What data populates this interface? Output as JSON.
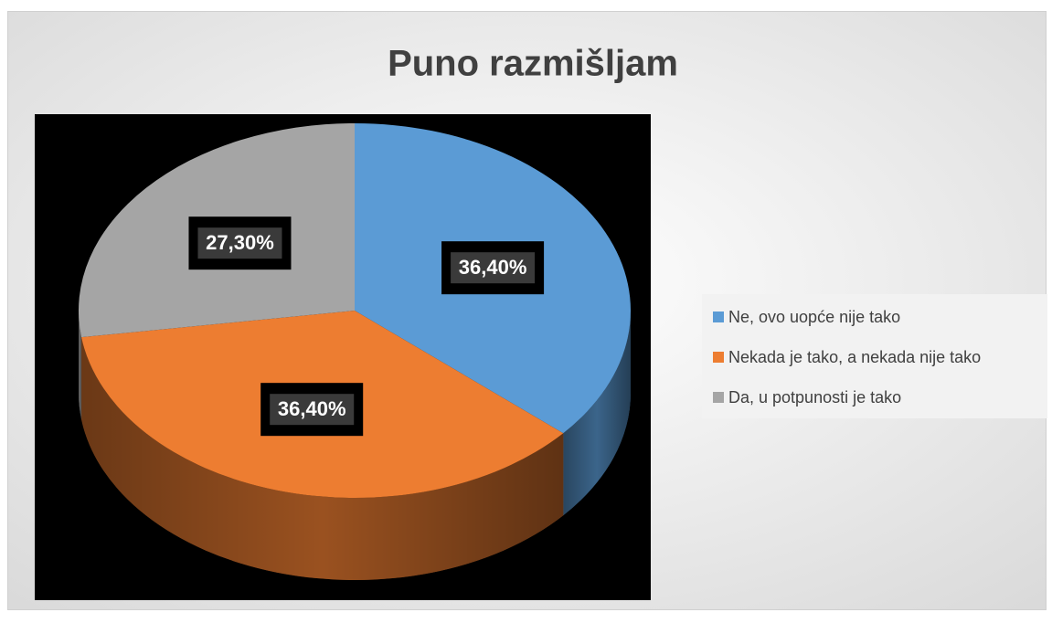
{
  "chart_data": {
    "type": "pie",
    "title": "Puno razmišljam",
    "categories": [
      "Ne, ovo uopće nije tako",
      "Nekada je tako, a nekada nije tako",
      "Da, u potpunosti je tako"
    ],
    "values": [
      36.4,
      36.4,
      27.3
    ],
    "value_labels": [
      "36,40%",
      "36,40%",
      "27,30%"
    ],
    "colors": [
      "#5b9bd5",
      "#ed7d31",
      "#a5a5a5"
    ],
    "legend": "right"
  }
}
